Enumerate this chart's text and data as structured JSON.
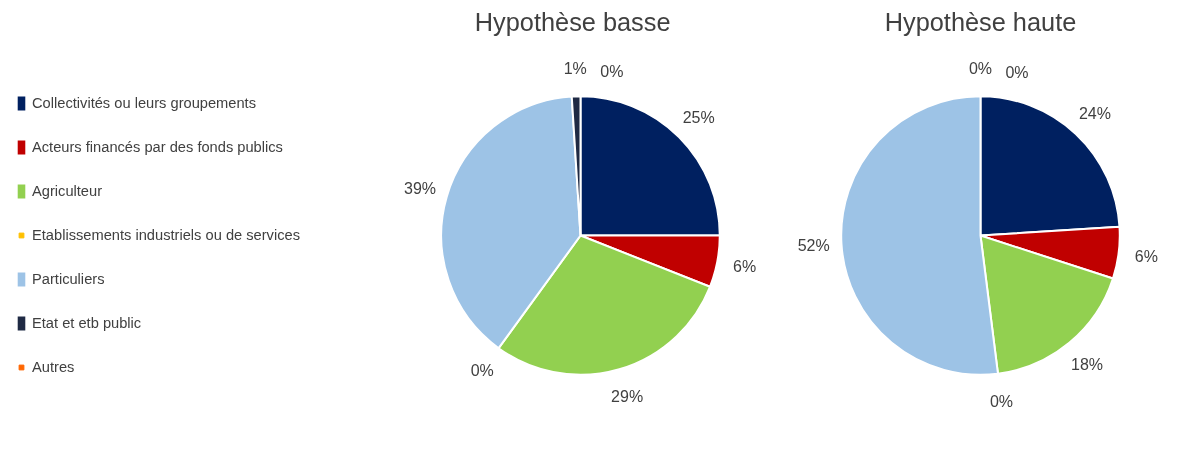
{
  "chart_data": [
    {
      "type": "pie",
      "title": "Hypothèse basse",
      "categories": [
        "Collectivités ou leurs groupements",
        "Acteurs financés par des fonds publics",
        "Agriculteur",
        "Etablissements industriels ou de services",
        "Particuliers",
        "Etat et etb public",
        "Autres"
      ],
      "values": [
        25,
        6,
        29,
        0,
        39,
        1,
        0
      ],
      "value_labels": [
        "25%",
        "6%",
        "29%",
        "0%",
        "39%",
        "1%",
        "0%"
      ],
      "colors": [
        "#002060",
        "#c00000",
        "#92d050",
        "#ffc000",
        "#9dc3e6",
        "#1f2a44",
        "#ff6600"
      ],
      "legend": "left"
    },
    {
      "type": "pie",
      "title": "Hypothèse haute",
      "categories": [
        null,
        null,
        null,
        null,
        null,
        null,
        null
      ],
      "values": [
        24,
        6,
        18,
        0,
        52,
        0,
        0
      ],
      "value_labels": [
        "24%",
        "6%",
        "18%",
        "0%",
        "52%",
        "0%",
        "0%"
      ],
      "colors": [
        "#002060",
        "#c00000",
        "#92d050",
        "#ffc000",
        "#9dc3e6",
        "#1f2a44",
        "#ff6600"
      ]
    }
  ]
}
